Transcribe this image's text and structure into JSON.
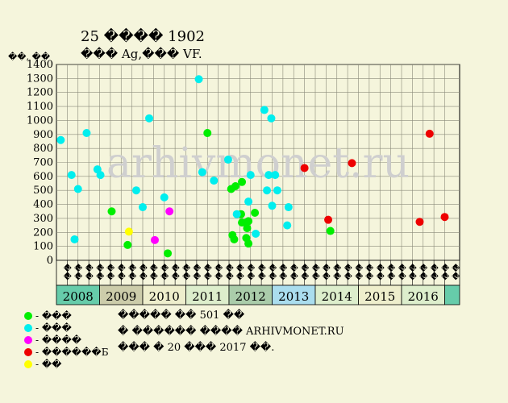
{
  "title_line1": "25 ���� 1902",
  "title_line2": "��� Ag,��� VF.",
  "y_unit": "��, ��",
  "watermark": "arhivmonet.ru",
  "footer_lines": [
    "����� �� 501 ��",
    "� ������ ���� ARHIVMONET.RU",
    "��� � 20 ��� 2017 ��."
  ],
  "legend": [
    {
      "label": "- ���",
      "color": "#00ee00"
    },
    {
      "label": "- ���",
      "color": "#00eeee"
    },
    {
      "label": "- ����",
      "color": "#ff00ff"
    },
    {
      "label": "- ������Б",
      "color": "#ee0000"
    },
    {
      "label": "- ��",
      "color": "#ffff00"
    }
  ],
  "chart_data": {
    "type": "scatter",
    "ylim": [
      0,
      1400
    ],
    "yticks": [
      0,
      100,
      200,
      300,
      400,
      500,
      600,
      700,
      800,
      900,
      1000,
      1100,
      1200,
      1300,
      1400
    ],
    "years": [
      {
        "label": "2008",
        "color": "#66ccaa"
      },
      {
        "label": "2009",
        "color": "#ccccaa"
      },
      {
        "label": "2010",
        "color": "#eeeecc"
      },
      {
        "label": "2011",
        "color": "#ddeecc"
      },
      {
        "label": "2012",
        "color": "#aaccaa"
      },
      {
        "label": "2013",
        "color": "#aaddee"
      },
      {
        "label": "2014",
        "color": "#ddeecc"
      },
      {
        "label": "2015",
        "color": "#eeeecc"
      },
      {
        "label": "2016",
        "color": "#ddeecc"
      }
    ],
    "quarter_labels": [
      "��",
      "��",
      "��",
      "��"
    ],
    "trailing_label": "��",
    "series": [
      {
        "name": "���",
        "color": "#00ee00",
        "points": [
          [
            1.28,
            350
          ],
          [
            1.65,
            110
          ],
          [
            2.58,
            50
          ],
          [
            3.5,
            910
          ],
          [
            4.05,
            510
          ],
          [
            4.15,
            530
          ],
          [
            4.08,
            180
          ],
          [
            4.12,
            150
          ],
          [
            4.3,
            560
          ],
          [
            4.28,
            330
          ],
          [
            4.3,
            270
          ],
          [
            4.4,
            270
          ],
          [
            4.42,
            230
          ],
          [
            4.45,
            280
          ],
          [
            4.4,
            160
          ],
          [
            4.45,
            120
          ],
          [
            4.6,
            340
          ],
          [
            6.35,
            210
          ]
        ]
      },
      {
        "name": "���",
        "color": "#00eeee",
        "points": [
          [
            0.1,
            860
          ],
          [
            0.35,
            610
          ],
          [
            0.42,
            150
          ],
          [
            0.5,
            510
          ],
          [
            0.7,
            910
          ],
          [
            0.95,
            650
          ],
          [
            1.02,
            610
          ],
          [
            1.85,
            500
          ],
          [
            2.0,
            380
          ],
          [
            2.15,
            1015
          ],
          [
            2.5,
            450
          ],
          [
            3.3,
            1295
          ],
          [
            3.38,
            630
          ],
          [
            3.65,
            570
          ],
          [
            3.98,
            720
          ],
          [
            4.18,
            330
          ],
          [
            4.45,
            420
          ],
          [
            4.5,
            610
          ],
          [
            4.62,
            190
          ],
          [
            4.82,
            1075
          ],
          [
            4.88,
            500
          ],
          [
            4.92,
            610
          ],
          [
            4.98,
            1015
          ],
          [
            5.0,
            390
          ],
          [
            5.07,
            610
          ],
          [
            5.12,
            500
          ],
          [
            5.35,
            250
          ],
          [
            5.38,
            380
          ]
        ]
      },
      {
        "name": "����",
        "color": "#ff00ff",
        "points": [
          [
            2.28,
            145
          ],
          [
            2.62,
            350
          ]
        ]
      },
      {
        "name": "������Б",
        "color": "#ee0000",
        "points": [
          [
            5.75,
            660
          ],
          [
            6.3,
            290
          ],
          [
            6.85,
            695
          ],
          [
            8.42,
            275
          ],
          [
            8.65,
            905
          ],
          [
            9.0,
            310
          ]
        ]
      },
      {
        "name": "��",
        "color": "#ffff00",
        "points": [
          [
            1.68,
            205
          ]
        ]
      }
    ]
  }
}
